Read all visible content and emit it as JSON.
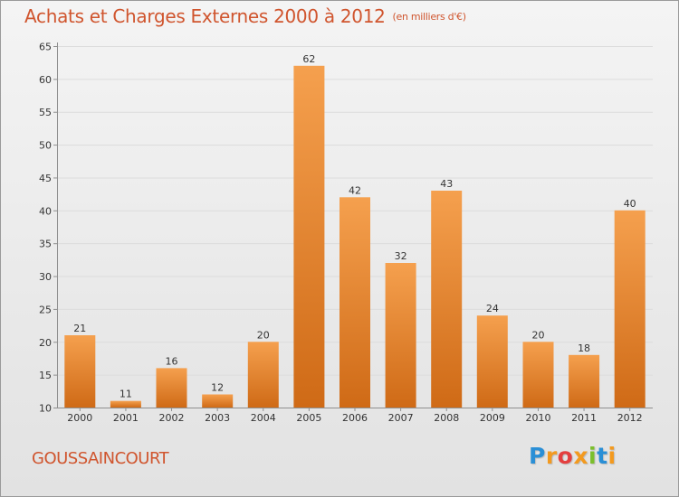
{
  "page": {
    "title": "Achats et Charges Externes 2000 à 2012",
    "unit_note": "(en milliers d'€)",
    "commune": "GOUSSAINCOURT",
    "brand": {
      "text": "Proxiti",
      "letters": [
        "P",
        "r",
        "o",
        "x",
        "i",
        "t",
        "i"
      ],
      "letter_colors": [
        "#2a8fd6",
        "#f39a1f",
        "#e43f3f",
        "#f39a1f",
        "#7bbf2b",
        "#2a8fd6",
        "#f39a1f"
      ]
    }
  },
  "colors": {
    "title": "#d0552e",
    "bar_top": "#f5a04e",
    "bar_bottom": "#cf6a16",
    "grid": "#dcdcdc",
    "axis": "#8f8f8f",
    "label": "#333333"
  },
  "chart_data": {
    "type": "bar",
    "title": "Achats et Charges Externes 2000 à 2012",
    "subtitle": "(en milliers d'€)",
    "categories": [
      "2000",
      "2001",
      "2002",
      "2003",
      "2004",
      "2005",
      "2006",
      "2007",
      "2008",
      "2009",
      "2010",
      "2011",
      "2012"
    ],
    "values": [
      21,
      11,
      16,
      12,
      20,
      62,
      42,
      32,
      43,
      24,
      20,
      18,
      40
    ],
    "value_labels": [
      "21",
      "11",
      "16",
      "12",
      "20",
      "62",
      "42",
      "32",
      "43",
      "24",
      "20",
      "18",
      "40"
    ],
    "ylim": [
      10,
      65
    ],
    "yticks": [
      10,
      15,
      20,
      25,
      30,
      35,
      40,
      45,
      50,
      55,
      60,
      65
    ],
    "grid": true,
    "xlabel": "",
    "ylabel": ""
  }
}
